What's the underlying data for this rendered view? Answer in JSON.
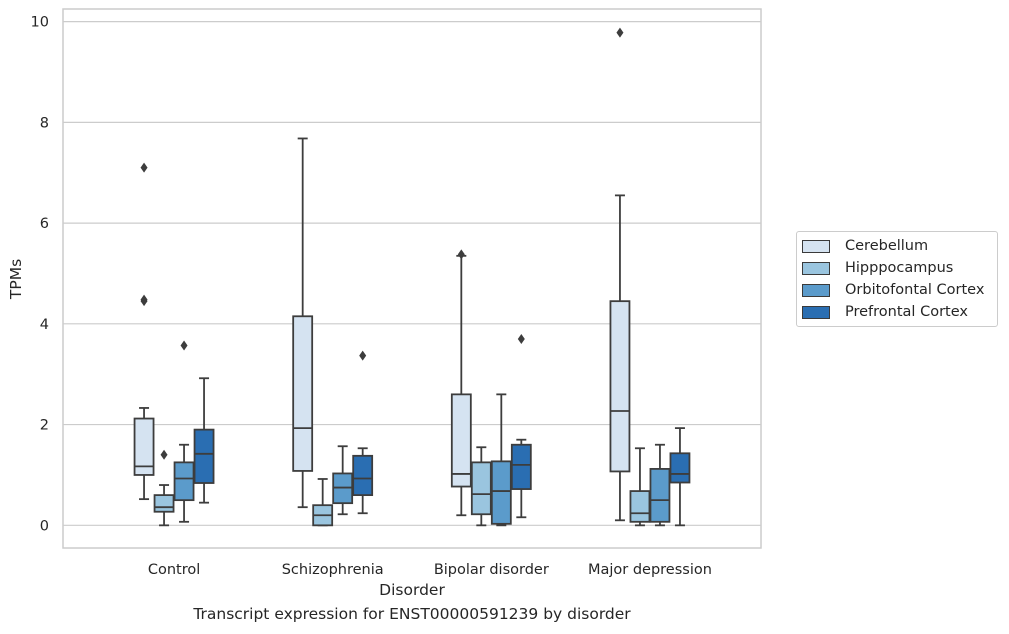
{
  "caption": "Transcript expression for ENST00000591239 by disorder",
  "chart_data": {
    "type": "box",
    "xlabel": "Disorder",
    "ylabel": "TPMs",
    "ylim": [
      -0.45,
      10.25
    ],
    "yticks": [
      0,
      2,
      4,
      6,
      8,
      10
    ],
    "categories": [
      "Control",
      "Schizophrenia",
      "Bipolar disorder",
      "Major depression"
    ],
    "grid": true,
    "legend_position": "right",
    "series": [
      {
        "name": "Cerebellum",
        "color": "#d5e3f1",
        "boxes": [
          {
            "low": 0.52,
            "q1": 1.0,
            "median": 1.17,
            "q3": 2.12,
            "high": 2.33,
            "outliers": [
              4.45,
              4.48,
              7.1
            ]
          },
          {
            "low": 0.36,
            "q1": 1.08,
            "median": 1.93,
            "q3": 4.15,
            "high": 7.68,
            "outliers": []
          },
          {
            "low": 0.2,
            "q1": 0.77,
            "median": 1.02,
            "q3": 2.6,
            "high": 5.35,
            "outliers": [
              5.38
            ]
          },
          {
            "low": 0.1,
            "q1": 1.07,
            "median": 2.27,
            "q3": 4.45,
            "high": 6.55,
            "outliers": [
              9.78
            ]
          }
        ]
      },
      {
        "name": "Hipppocampus",
        "color": "#9ac5df",
        "boxes": [
          {
            "low": 0.0,
            "q1": 0.27,
            "median": 0.36,
            "q3": 0.6,
            "high": 0.8,
            "outliers": [
              1.4
            ]
          },
          {
            "low": 0.0,
            "q1": 0.0,
            "median": 0.2,
            "q3": 0.4,
            "high": 0.92,
            "outliers": []
          },
          {
            "low": 0.0,
            "q1": 0.22,
            "median": 0.62,
            "q3": 1.25,
            "high": 1.55,
            "outliers": []
          },
          {
            "low": 0.0,
            "q1": 0.07,
            "median": 0.24,
            "q3": 0.68,
            "high": 1.53,
            "outliers": []
          }
        ]
      },
      {
        "name": "Orbitofontal Cortex",
        "color": "#5b9bcb",
        "boxes": [
          {
            "low": 0.07,
            "q1": 0.5,
            "median": 0.93,
            "q3": 1.25,
            "high": 1.6,
            "outliers": [
              3.57
            ]
          },
          {
            "low": 0.22,
            "q1": 0.44,
            "median": 0.75,
            "q3": 1.03,
            "high": 1.57,
            "outliers": []
          },
          {
            "low": 0.0,
            "q1": 0.03,
            "median": 0.68,
            "q3": 1.27,
            "high": 2.6,
            "outliers": []
          },
          {
            "low": 0.0,
            "q1": 0.07,
            "median": 0.5,
            "q3": 1.12,
            "high": 1.6,
            "outliers": []
          }
        ]
      },
      {
        "name": "Prefrontal Cortex",
        "color": "#2a6eb2",
        "boxes": [
          {
            "low": 0.45,
            "q1": 0.84,
            "median": 1.42,
            "q3": 1.9,
            "high": 2.92,
            "outliers": []
          },
          {
            "low": 0.24,
            "q1": 0.6,
            "median": 0.93,
            "q3": 1.38,
            "high": 1.53,
            "outliers": [
              3.37
            ]
          },
          {
            "low": 0.16,
            "q1": 0.72,
            "median": 1.2,
            "q3": 1.6,
            "high": 1.7,
            "outliers": [
              3.7
            ]
          },
          {
            "low": 0.0,
            "q1": 0.85,
            "median": 1.02,
            "q3": 1.43,
            "high": 1.93,
            "outliers": []
          }
        ]
      }
    ]
  }
}
